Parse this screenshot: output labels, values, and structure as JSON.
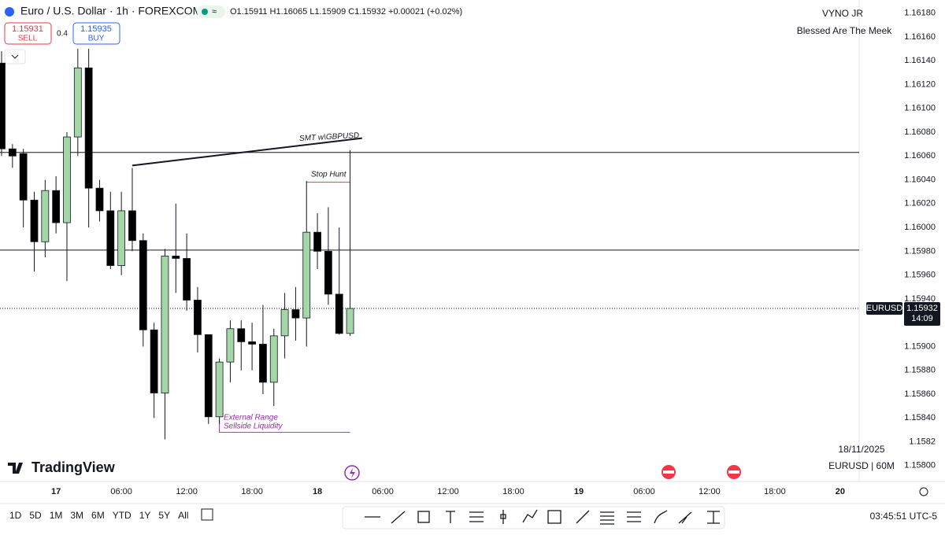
{
  "header": {
    "symbol": "Euro / U.S. Dollar · 1h · FOREXCOM",
    "ohlc": "O1.15911 H1.16065 L1.15909 C1.15932 +0.00021 (+0.02%)",
    "sell_price": "1.15931",
    "sell_label": "SELL",
    "spread": "0.4",
    "buy_price": "1.15935",
    "buy_label": "BUY",
    "author": "VYNO JR",
    "motto": "Blessed Are The Meek"
  },
  "footer": {
    "date": "18/11/2025",
    "symbol_interval": "EURUSD | 60M",
    "logo": "TradingView",
    "clock": "03:45:51 UTC-5",
    "ranges": [
      "1D",
      "5D",
      "1M",
      "3M",
      "6M",
      "YTD",
      "1Y",
      "5Y",
      "All"
    ]
  },
  "chart_data": {
    "type": "candlestick",
    "title": "EURUSD",
    "categories": [
      null,
      null,
      null,
      null,
      null,
      "17",
      null,
      null,
      null,
      null,
      null,
      "06:00",
      null,
      null,
      null,
      null,
      null,
      "12:00",
      null,
      null,
      null,
      null,
      null,
      "18:00",
      null,
      null,
      null,
      null,
      null,
      "18",
      null,
      null,
      null,
      null,
      null,
      "06:00",
      null,
      null,
      null,
      null,
      null,
      "12:00",
      null,
      null,
      null,
      null,
      null,
      "18:00",
      null,
      null,
      null,
      null,
      null,
      "19",
      null,
      null,
      null,
      null,
      null,
      "06:00",
      null,
      null,
      null,
      null,
      null,
      "12:00",
      null,
      null,
      null,
      null,
      null,
      "18:00",
      null,
      null,
      null,
      null,
      null,
      "20",
      null
    ],
    "open": [
      1.16138,
      1.16066,
      1.16062,
      1.16023,
      1.15988,
      1.16031,
      1.16004,
      1.16076,
      1.16134,
      1.16033,
      1.16014,
      1.15968,
      1.16014,
      1.15989,
      1.15914,
      1.15861,
      1.15976,
      1.15974,
      1.15939,
      1.1591,
      1.15841,
      1.15887,
      1.15915,
      1.15904,
      1.15902,
      1.1587,
      1.15909,
      1.15931,
      1.15924,
      1.15996,
      1.1598,
      1.15944,
      1.15911,
      null,
      null,
      null,
      null,
      null,
      null,
      null,
      null,
      null,
      null,
      null,
      null,
      null,
      null,
      null,
      null,
      null,
      null,
      null,
      null,
      null,
      null,
      null,
      null,
      null,
      null,
      null,
      null,
      null,
      null,
      null,
      null,
      null,
      null,
      null,
      null,
      null,
      null,
      null,
      null,
      null,
      null,
      null,
      null,
      null,
      null
    ],
    "high": [
      1.16148,
      1.1607,
      1.16066,
      1.1603,
      1.1604,
      1.16043,
      1.1608,
      1.1615,
      1.1615,
      1.1604,
      1.1603,
      1.1603,
      1.1605,
      1.15995,
      1.1592,
      1.15982,
      1.1602,
      1.15995,
      1.1595,
      1.1591,
      1.1589,
      1.15922,
      1.15922,
      1.1592,
      1.15935,
      1.15915,
      1.15945,
      1.1595,
      1.16039,
      1.16012,
      1.16017,
      1.16,
      1.16065,
      null,
      null,
      null,
      null,
      null,
      null,
      null,
      null,
      null,
      null,
      null,
      null,
      null,
      null,
      null,
      null,
      null,
      null,
      null,
      null,
      null,
      null,
      null,
      null,
      null,
      null,
      null,
      null,
      null,
      null,
      null,
      null,
      null,
      null,
      null,
      null,
      null,
      null,
      null,
      null,
      null,
      null,
      null,
      null,
      null,
      null
    ],
    "low": [
      1.1606,
      1.1605,
      1.16,
      1.15963,
      1.15975,
      1.15995,
      1.15955,
      1.1606,
      1.16,
      1.16005,
      1.15965,
      1.1596,
      1.1598,
      1.159,
      1.1584,
      1.15822,
      1.15945,
      1.1593,
      1.15895,
      1.15835,
      1.15835,
      1.1587,
      1.1588,
      1.1588,
      1.1586,
      1.1585,
      1.1589,
      1.15905,
      1.159,
      1.15965,
      1.15935,
      1.1591,
      1.15909,
      null,
      null,
      null,
      null,
      null,
      null,
      null,
      null,
      null,
      null,
      null,
      null,
      null,
      null,
      null,
      null,
      null,
      null,
      null,
      null,
      null,
      null,
      null,
      null,
      null,
      null,
      null,
      null,
      null,
      null,
      null,
      null,
      null,
      null,
      null,
      null,
      null,
      null,
      null,
      null,
      null,
      null,
      null,
      null,
      null,
      null
    ],
    "close": [
      1.16066,
      1.1606,
      1.16023,
      1.15988,
      1.16031,
      1.16004,
      1.16076,
      1.16134,
      1.16033,
      1.16014,
      1.15968,
      1.16014,
      1.15989,
      1.15914,
      1.15861,
      1.15976,
      1.15974,
      1.15939,
      1.1591,
      1.15841,
      1.15887,
      1.15915,
      1.15904,
      1.15902,
      1.1587,
      1.15909,
      1.15931,
      1.15924,
      1.15996,
      1.1598,
      1.15944,
      1.15911,
      1.15932,
      null,
      null,
      null,
      null,
      null,
      null,
      null,
      null,
      null,
      null,
      null,
      null,
      null,
      null,
      null,
      null,
      null,
      null,
      null,
      null,
      null,
      null,
      null,
      null,
      null,
      null,
      null,
      null,
      null,
      null,
      null,
      null,
      null,
      null,
      null,
      null,
      null,
      null,
      null,
      null,
      null,
      null,
      null,
      null,
      null,
      null
    ],
    "up_color": "#a5d6a7",
    "down_color": "#000000",
    "ylim": [
      1.15788,
      1.16191
    ],
    "yticks": [
      {
        "value": 1.158,
        "label": "1.15800"
      },
      1.1582,
      {
        "value": 1.1584,
        "label": "1.15840"
      },
      {
        "value": 1.1586,
        "label": "1.15860"
      },
      {
        "value": 1.1588,
        "label": "1.15880"
      },
      {
        "value": 1.159,
        "label": "1.15900"
      },
      {
        "value": 1.1592,
        "label": "1.15920"
      },
      {
        "value": 1.1594,
        "label": "1.15940"
      },
      {
        "value": 1.1596,
        "label": "1.15960"
      },
      {
        "value": 1.1598,
        "label": "1.15980"
      },
      {
        "value": 1.16,
        "label": "1.16000"
      },
      {
        "value": 1.1602,
        "label": "1.16020"
      },
      {
        "value": 1.1604,
        "label": "1.16040"
      },
      {
        "value": 1.1606,
        "label": "1.16060"
      },
      {
        "value": 1.1608,
        "label": "1.16080"
      },
      {
        "value": 1.161,
        "label": "1.16100"
      },
      {
        "value": 1.1612,
        "label": "1.16120"
      },
      {
        "value": 1.1614,
        "label": "1.16140"
      },
      {
        "value": 1.1616,
        "label": "1.16160"
      },
      {
        "value": 1.1618,
        "label": "1.16180"
      }
    ],
    "grid": false,
    "last_price": 1.15932,
    "last_symbol": "EURUSD",
    "countdown": "14:09",
    "levels": [
      1.16063,
      1.15981
    ],
    "smt_line": [
      1.16052,
      1.16075
    ],
    "stop_hunt_level": 1.16038,
    "ssl_level": 1.15828,
    "annotations": {
      "smt": "SMT w\\GBPUSD",
      "stop_hunt": "Stop Hunt",
      "ext_range": "External Range",
      "ssl": "Sellside Liquidity"
    }
  }
}
